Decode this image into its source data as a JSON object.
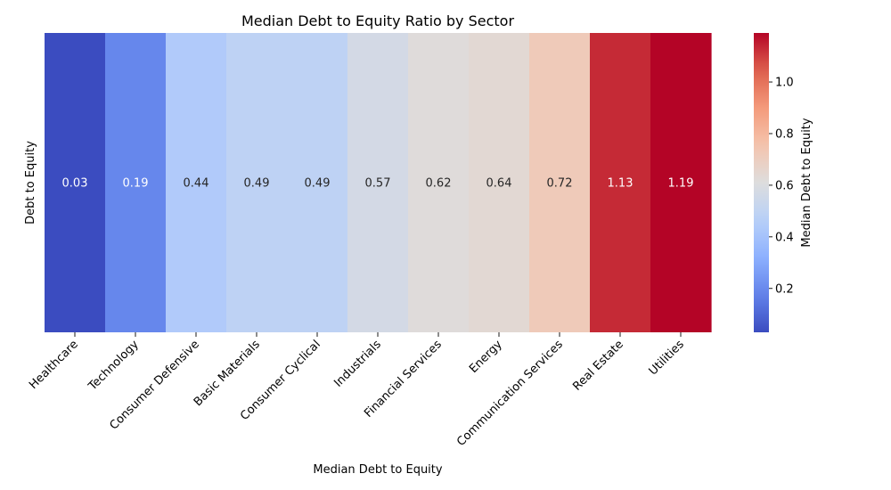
{
  "chart_data": {
    "type": "heatmap",
    "title": "Median Debt to Equity Ratio by Sector",
    "xlabel": "Median Debt to Equity",
    "ylabel": "Debt to Equity",
    "categories": [
      "Healthcare",
      "Technology",
      "Consumer Defensive",
      "Basic Materials",
      "Consumer Cyclical",
      "Industrials",
      "Financial Services",
      "Energy",
      "Communication Services",
      "Real Estate",
      "Utilities"
    ],
    "values": [
      0.03,
      0.19,
      0.44,
      0.49,
      0.49,
      0.57,
      0.62,
      0.64,
      0.72,
      1.13,
      1.19
    ],
    "value_labels": [
      "0.03",
      "0.19",
      "0.44",
      "0.49",
      "0.49",
      "0.57",
      "0.62",
      "0.64",
      "0.72",
      "1.13",
      "1.19"
    ],
    "colorbar": {
      "label": "Median Debt to Equity",
      "range": [
        0.03,
        1.19
      ],
      "ticks": [
        0.2,
        0.4,
        0.6,
        0.8,
        1.0
      ],
      "tick_labels": [
        "0.2",
        "0.4",
        "0.6",
        "0.8",
        "1.0"
      ],
      "colormap": "coolwarm"
    },
    "grid": false,
    "legend": "colorbar-right"
  }
}
